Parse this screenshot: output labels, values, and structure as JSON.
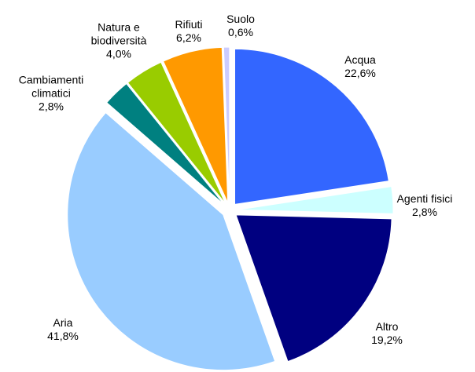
{
  "chart_data": {
    "type": "pie",
    "categories": [
      "Acqua",
      "Agenti fisici",
      "Altro",
      "Aria",
      "Cambiamenti climatici",
      "Natura e biodiversità",
      "Rifiuti",
      "Suolo"
    ],
    "values": [
      22.6,
      2.8,
      19.2,
      41.8,
      2.8,
      4.0,
      6.2,
      0.6
    ],
    "value_labels": [
      "22,6%",
      "2,8%",
      "19,2%",
      "41,8%",
      "2,8%",
      "4,0%",
      "6,2%",
      "0,6%"
    ],
    "colors": [
      "#3366ff",
      "#ccffff",
      "#000080",
      "#99ccff",
      "#008080",
      "#99cc00",
      "#ff9900",
      "#ccccff"
    ]
  }
}
